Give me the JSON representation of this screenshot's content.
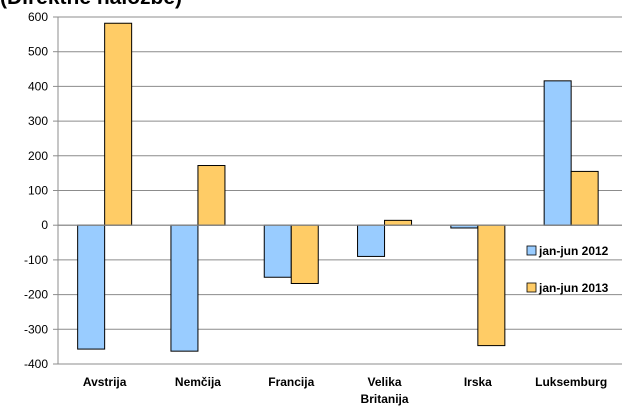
{
  "chart_data": {
    "type": "bar",
    "title": "(Direktne naložbe)",
    "categories": [
      "Avstrija",
      "Nemčija",
      "Francija",
      "Velika Britanija",
      "Irska",
      "Luksemburg"
    ],
    "series": [
      {
        "name": "jan-jun 2012",
        "color": "#99ccff",
        "values": [
          -357,
          -363,
          -150,
          -90,
          -8,
          416
        ]
      },
      {
        "name": "jan-jun 2013",
        "color": "#ffcc66",
        "values": [
          582,
          172,
          -168,
          14,
          -347,
          155
        ]
      }
    ],
    "ylim": [
      -400,
      600
    ],
    "yticks": [
      600,
      500,
      400,
      300,
      200,
      100,
      0,
      -100,
      -200,
      -300,
      -400
    ],
    "grid": true,
    "legend": "right"
  }
}
